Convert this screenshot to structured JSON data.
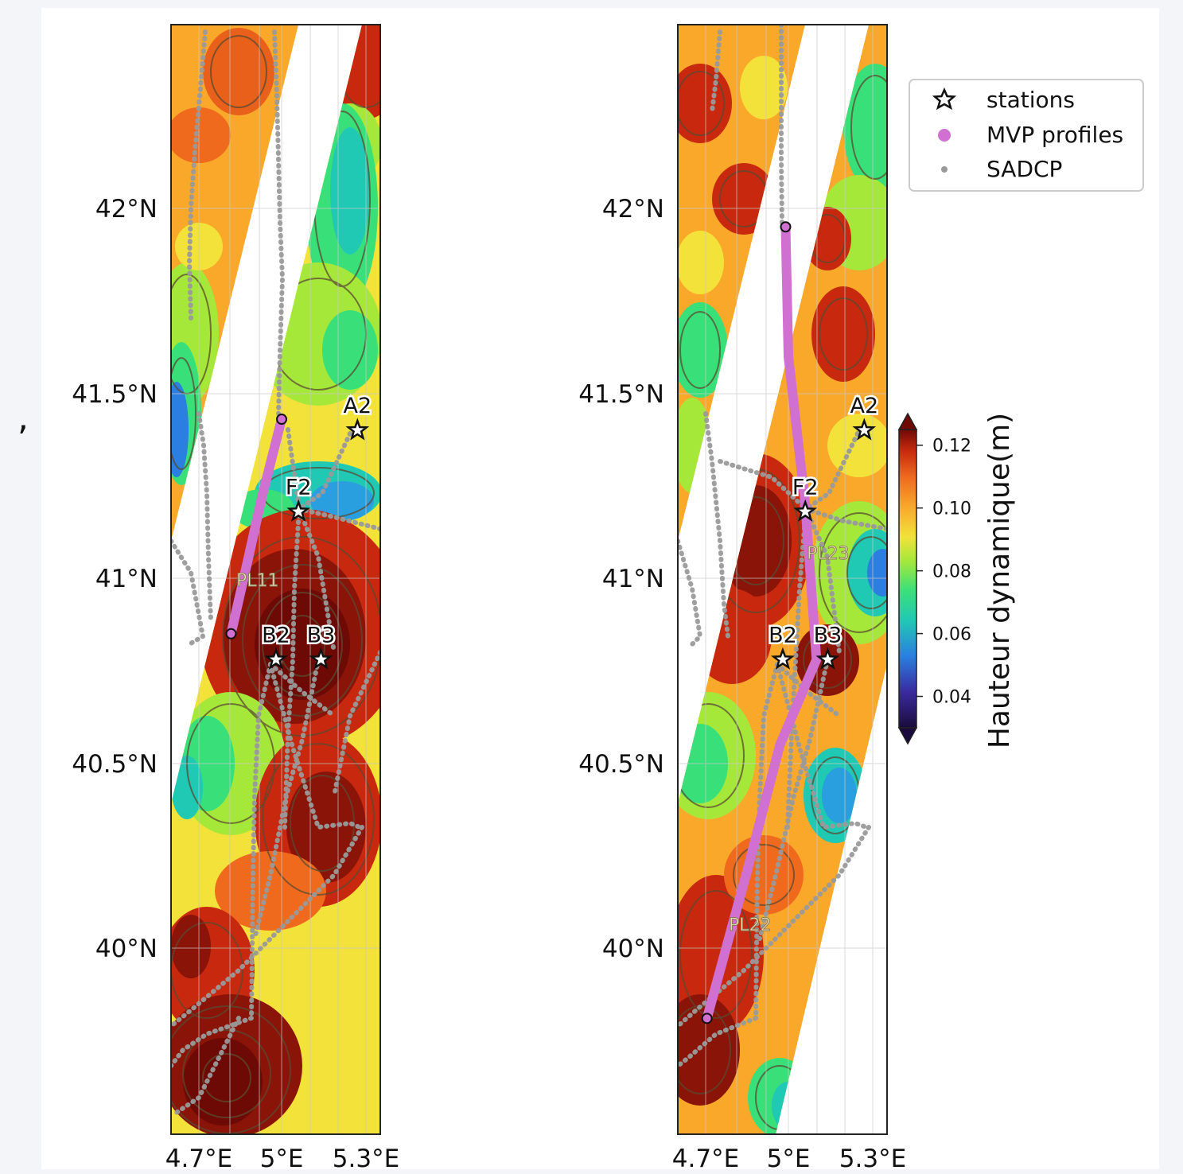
{
  "map": {
    "lat_labels": [
      "42°N",
      "41.5°N",
      "41°N",
      "40.5°N",
      "40°N"
    ],
    "lat_values": [
      42.0,
      41.5,
      41.0,
      40.5,
      40.0
    ],
    "lon_labels": [
      "4.7°E",
      "5°E",
      "5.3°E"
    ],
    "lon_values": [
      4.7,
      5.0,
      5.3
    ],
    "lat_range": [
      39.57,
      42.5
    ],
    "lon_range": [
      4.65,
      5.35
    ]
  },
  "panels": [
    {
      "transect_label": "PL11",
      "stations": [
        {
          "name": "A2",
          "lon": 5.27,
          "lat": 41.4
        },
        {
          "name": "F2",
          "lon": 5.06,
          "lat": 41.18
        },
        {
          "name": "B2",
          "lon": 4.98,
          "lat": 40.78
        },
        {
          "name": "B3",
          "lon": 5.14,
          "lat": 40.78
        }
      ],
      "mvp_track": [
        [
          4.82,
          40.85
        ],
        [
          4.88,
          41.05
        ],
        [
          4.93,
          41.22
        ],
        [
          4.96,
          41.31
        ],
        [
          5.0,
          41.43
        ]
      ]
    },
    {
      "transect_labels": [
        "PL22",
        "PL23"
      ],
      "stations": [
        {
          "name": "A2",
          "lon": 5.27,
          "lat": 41.4
        },
        {
          "name": "F2",
          "lon": 5.06,
          "lat": 41.18
        },
        {
          "name": "B2",
          "lon": 4.98,
          "lat": 40.78
        },
        {
          "name": "B3",
          "lon": 5.14,
          "lat": 40.78
        }
      ],
      "mvp_track": [
        [
          4.71,
          39.81
        ],
        [
          4.85,
          40.2
        ],
        [
          4.97,
          40.55
        ],
        [
          5.1,
          40.78
        ],
        [
          5.06,
          41.2
        ],
        [
          5.0,
          41.6
        ],
        [
          4.99,
          41.95
        ]
      ]
    }
  ],
  "legend": {
    "items": [
      {
        "label": "stations",
        "marker": "star-icon"
      },
      {
        "label": "MVP profiles",
        "marker": "dot",
        "color": "#d070d0"
      },
      {
        "label": "SADCP",
        "marker": "dot",
        "color": "#9a9a9a"
      }
    ]
  },
  "colorbar": {
    "title": "Hauteur dynamique(m)",
    "ticks": [
      "0.12",
      "0.10",
      "0.08",
      "0.06",
      "0.04"
    ],
    "tick_values": [
      0.12,
      0.1,
      0.08,
      0.06,
      0.04
    ],
    "range": [
      0.03,
      0.125
    ],
    "colormap": [
      "#1a0b3c",
      "#3a2aa0",
      "#2a7fe0",
      "#1fc9b4",
      "#39e07a",
      "#a6e83a",
      "#f2e23a",
      "#f9a82a",
      "#f06a1e",
      "#c8280e",
      "#6e0a05"
    ]
  },
  "colors": {
    "mvp": "#d070d0",
    "sadcp": "#9a9a9a",
    "contour": "#5a4a30"
  }
}
